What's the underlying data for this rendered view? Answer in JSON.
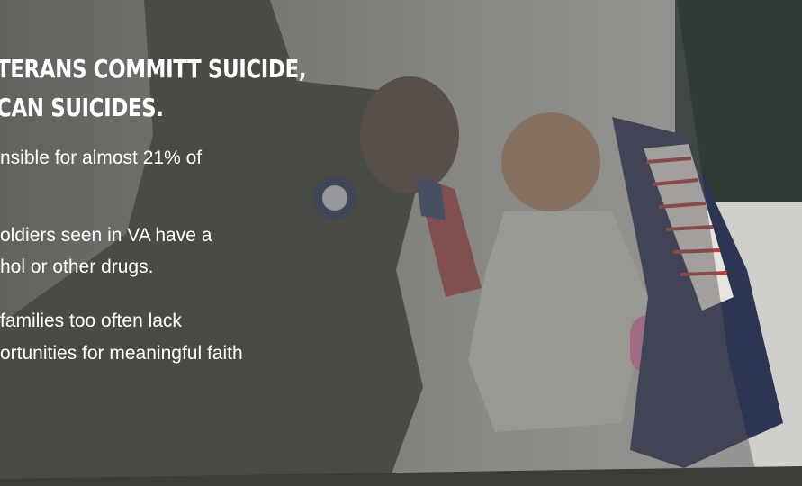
{
  "headline": {
    "lines": [
      "TERANS COMMITT SUICIDE,",
      "CAN SUICIDES."
    ]
  },
  "bullets": [
    {
      "lines": [
        "nsible for almost 21% of"
      ]
    },
    {
      "lines": [
        "oldiers seen in VA have a",
        "hol or other drugs."
      ]
    },
    {
      "lines": [
        "families too often lack",
        "ortunities for meaningful faith"
      ]
    }
  ]
}
